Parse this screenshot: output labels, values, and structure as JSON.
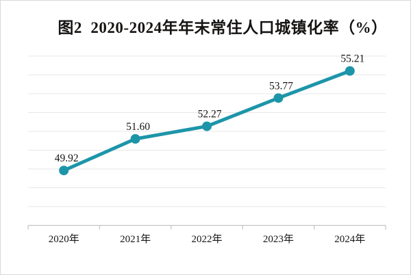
{
  "page": {
    "background": "#ffffff",
    "border_color": "#d9d9d9"
  },
  "chart_data": {
    "type": "line",
    "title": "图2  2020-2024年年末常住人口城镇化率（%）",
    "categories": [
      "2020年",
      "2021年",
      "2022年",
      "2023年",
      "2024年"
    ],
    "values": [
      49.92,
      51.6,
      52.27,
      53.77,
      55.21
    ],
    "data_labels": [
      "49.92",
      "51.60",
      "52.27",
      "53.77",
      "55.21"
    ],
    "xlabel": "",
    "ylabel": "",
    "ylim": [
      47,
      56
    ],
    "grid_step": 1,
    "grid": true,
    "y_tick_labels_visible": false,
    "legend": "none",
    "line_color": "#1d95a9",
    "marker_color": "#1d95a9",
    "grid_color": "#e8e6e5",
    "axis_color": "#c6c3c1",
    "text_color": "#161413"
  }
}
